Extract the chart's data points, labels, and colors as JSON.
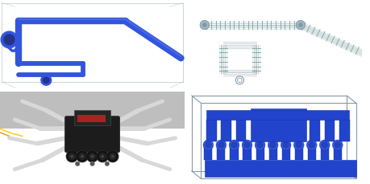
{
  "figure_width": 4.6,
  "figure_height": 2.3,
  "dpi": 100,
  "tl_bg": "#8e9faa",
  "tl_leg": "#3355dd",
  "tl_box": "#aabbc4",
  "tr_bg": "#b8c2ca",
  "tr_path": "#9ab0b8",
  "tr_green": "#66aa99",
  "bl_bg": "#1a1a1a",
  "bl_white": "#d8d8d8",
  "bl_dark": "#111111",
  "br_bg": "#cdd8e4",
  "br_blue": "#2244cc",
  "br_outline": "#8899aa"
}
